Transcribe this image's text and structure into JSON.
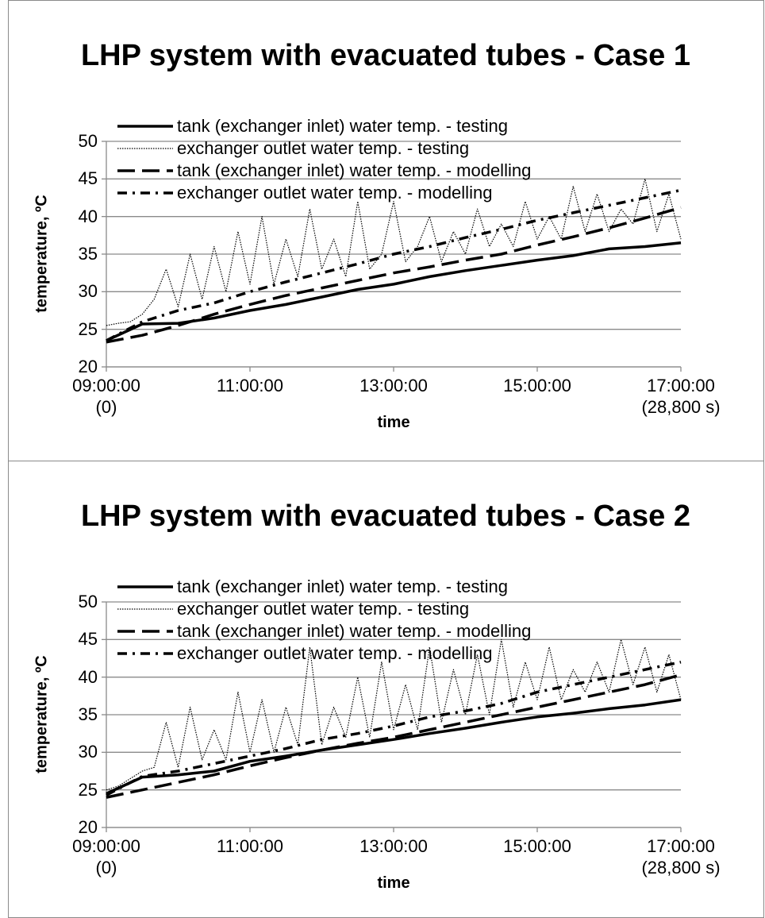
{
  "chart_data": [
    {
      "type": "line",
      "title": "LHP system with evacuated tubes - Case 1",
      "x_label": "time",
      "y_label": "temperature, ºC",
      "xlim": [
        0,
        28800
      ],
      "xticks": [
        {
          "value": 0,
          "label": "09:00:00\n(0)"
        },
        {
          "value": 7200,
          "label": "11:00:00"
        },
        {
          "value": 14400,
          "label": "13:00:00"
        },
        {
          "value": 21600,
          "label": "15:00:00"
        },
        {
          "value": 28800,
          "label": "17:00:00\n(28,800 s)"
        }
      ],
      "ylim": [
        20,
        50
      ],
      "yticks": [
        20,
        25,
        30,
        35,
        40,
        45,
        50
      ],
      "grid": true,
      "legend": "top-left",
      "series": [
        {
          "name": "tank (exchanger inlet) water temp. - testing",
          "color": "#000000",
          "style": "solid",
          "x": [
            0,
            1800,
            3600,
            5400,
            7200,
            9000,
            10800,
            12600,
            14400,
            16200,
            18000,
            19800,
            21600,
            23400,
            25200,
            27000,
            28800
          ],
          "values": [
            23.5,
            25.7,
            25.8,
            26.5,
            27.5,
            28.3,
            29.3,
            30.3,
            31.0,
            32.0,
            32.8,
            33.5,
            34.2,
            34.8,
            35.7,
            36.0,
            36.5
          ]
        },
        {
          "name": "exchanger outlet water temp. - testing",
          "color": "#000000",
          "style": "dotted",
          "x": [
            0,
            600,
            1200,
            1800,
            2400,
            3000,
            3600,
            4200,
            4800,
            5400,
            6000,
            6600,
            7200,
            7800,
            8400,
            9000,
            9600,
            10200,
            10800,
            11400,
            12000,
            12600,
            13200,
            13800,
            14400,
            15000,
            15600,
            16200,
            16800,
            17400,
            18000,
            18600,
            19200,
            19800,
            20400,
            21000,
            21600,
            22200,
            22800,
            23400,
            24000,
            24600,
            25200,
            25800,
            26400,
            27000,
            27600,
            28200,
            28800
          ],
          "values": [
            25.5,
            25.8,
            26,
            27,
            29,
            33,
            28,
            35,
            29,
            36,
            30,
            38,
            31,
            40,
            31,
            37,
            32,
            41,
            33,
            37,
            32,
            42,
            33,
            35,
            42,
            34,
            36,
            40,
            34,
            38,
            35,
            41,
            36,
            39,
            36,
            42,
            37,
            40,
            37,
            44,
            38,
            43,
            38,
            41,
            39,
            45,
            38,
            43,
            37
          ]
        },
        {
          "name": "tank (exchanger inlet) water temp. - modelling",
          "color": "#000000",
          "style": "dashed",
          "x": [
            0,
            1800,
            3600,
            5400,
            7200,
            9000,
            10800,
            12600,
            14400,
            16200,
            18000,
            19800,
            21600,
            23400,
            25200,
            27000,
            28800
          ],
          "values": [
            23.3,
            24.2,
            25.5,
            27.0,
            28.3,
            29.5,
            30.5,
            31.5,
            32.5,
            33.3,
            34.2,
            35.0,
            36.2,
            37.3,
            38.5,
            39.8,
            41.2
          ]
        },
        {
          "name": "exchanger outlet water temp. - modelling",
          "color": "#000000",
          "style": "dashdot",
          "x": [
            0,
            1800,
            3600,
            5400,
            7200,
            9000,
            10800,
            12600,
            14400,
            16200,
            18000,
            19800,
            21600,
            23400,
            25200,
            27000,
            28800
          ],
          "values": [
            23.5,
            26,
            27.5,
            28.5,
            30,
            31.3,
            32.5,
            33.7,
            35,
            36,
            37.2,
            38.3,
            39.5,
            40.5,
            41.5,
            42.5,
            43.5
          ]
        }
      ]
    },
    {
      "type": "line",
      "title": "LHP system with evacuated tubes - Case 2",
      "x_label": "time",
      "y_label": "temperature, ºC",
      "xlim": [
        0,
        28800
      ],
      "xticks": [
        {
          "value": 0,
          "label": "09:00:00\n(0)"
        },
        {
          "value": 7200,
          "label": "11:00:00"
        },
        {
          "value": 14400,
          "label": "13:00:00"
        },
        {
          "value": 21600,
          "label": "15:00:00"
        },
        {
          "value": 28800,
          "label": "17:00:00\n(28,800 s)"
        }
      ],
      "ylim": [
        20,
        50
      ],
      "yticks": [
        20,
        25,
        30,
        35,
        40,
        45,
        50
      ],
      "grid": true,
      "legend": "top-left",
      "series": [
        {
          "name": "tank (exchanger inlet) water temp. - testing",
          "color": "#000000",
          "style": "solid",
          "x": [
            0,
            1800,
            3600,
            5400,
            7200,
            9000,
            10800,
            12600,
            14400,
            16200,
            18000,
            19800,
            21600,
            23400,
            25200,
            27000,
            28800
          ],
          "values": [
            24.5,
            26.7,
            27,
            27.5,
            28.8,
            29.5,
            30.3,
            31,
            31.7,
            32.5,
            33.2,
            34,
            34.7,
            35.2,
            35.8,
            36.3,
            37
          ]
        },
        {
          "name": "exchanger outlet water temp. - testing",
          "color": "#000000",
          "style": "dotted",
          "x": [
            0,
            600,
            1200,
            1800,
            2400,
            3000,
            3600,
            4200,
            4800,
            5400,
            6000,
            6600,
            7200,
            7800,
            8400,
            9000,
            9600,
            10200,
            10800,
            11400,
            12000,
            12600,
            13200,
            13800,
            14400,
            15000,
            15600,
            16200,
            16800,
            17400,
            18000,
            18600,
            19200,
            19800,
            20400,
            21000,
            21600,
            22200,
            22800,
            23400,
            24000,
            24600,
            25200,
            25800,
            26400,
            27000,
            27600,
            28200,
            28800
          ],
          "values": [
            25,
            25.5,
            26.5,
            27.5,
            28,
            34,
            28,
            36,
            29,
            33,
            29,
            38,
            30,
            37,
            30,
            36,
            31,
            44,
            31,
            36,
            32,
            40,
            32,
            42,
            33,
            39,
            33,
            44,
            34,
            41,
            35,
            43,
            35,
            45,
            36,
            42,
            37,
            44,
            37,
            41,
            38,
            42,
            38,
            45,
            39,
            44,
            38,
            43,
            37
          ]
        },
        {
          "name": "tank (exchanger inlet) water temp. - modelling",
          "color": "#000000",
          "style": "dashed",
          "x": [
            0,
            1800,
            3600,
            5400,
            7200,
            9000,
            10800,
            12600,
            14400,
            16200,
            18000,
            19800,
            21600,
            23400,
            25200,
            27000,
            28800
          ],
          "values": [
            24,
            25,
            26,
            27,
            28.2,
            29.3,
            30.3,
            31.2,
            32,
            33,
            34,
            35,
            36,
            37,
            38,
            39,
            40.3
          ]
        },
        {
          "name": "exchanger outlet water temp. - modelling",
          "color": "#000000",
          "style": "dashdot",
          "x": [
            0,
            1800,
            3600,
            5400,
            7200,
            9000,
            10800,
            12600,
            14400,
            16200,
            18000,
            19800,
            21600,
            23400,
            25200,
            27000,
            28800
          ],
          "values": [
            24.3,
            26.8,
            27.5,
            28.5,
            29.5,
            30.5,
            31.7,
            32.5,
            33.5,
            34.7,
            35.5,
            36.5,
            38,
            39,
            40,
            41,
            42
          ]
        }
      ]
    }
  ]
}
